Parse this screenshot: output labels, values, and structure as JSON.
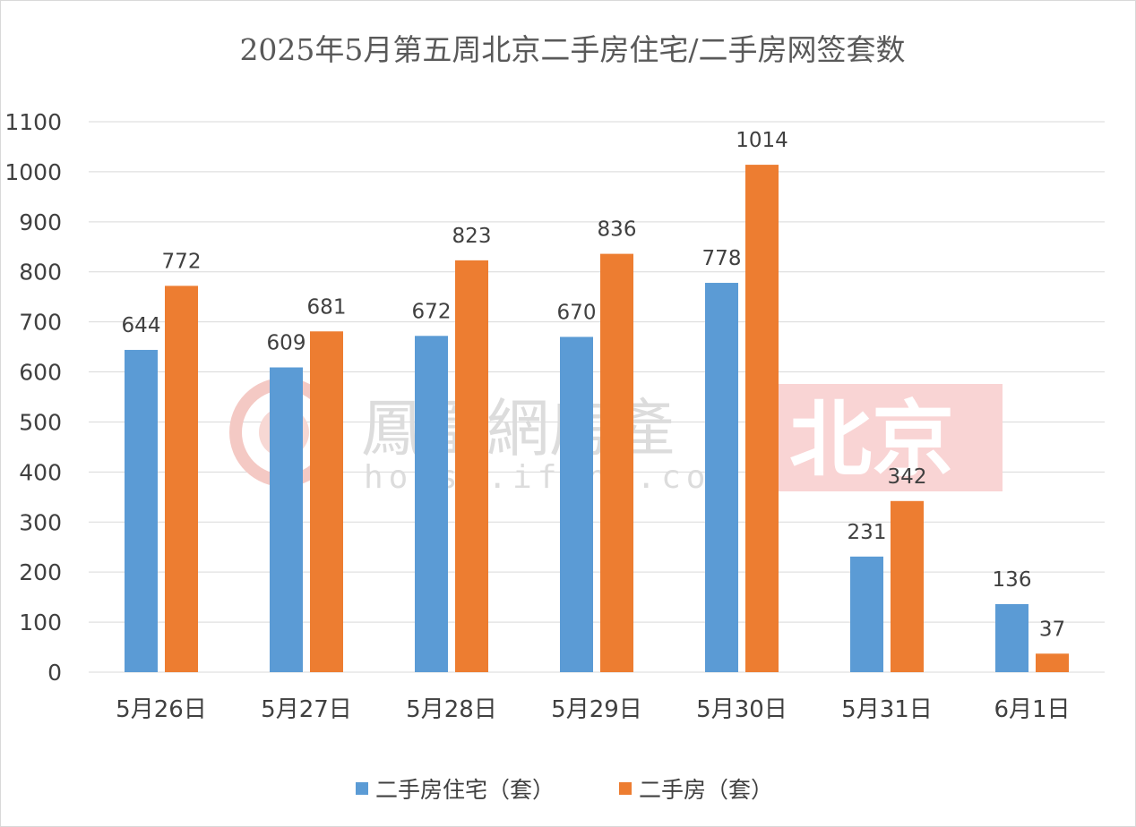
{
  "chart_data": {
    "type": "bar",
    "title": "2025年5月第五周北京二手房住宅/二手房网签套数",
    "categories": [
      "5月26日",
      "5月27日",
      "5月28日",
      "5月29日",
      "5月30日",
      "5月31日",
      "6月1日"
    ],
    "series": [
      {
        "name": "二手房住宅（套）",
        "color": "#5b9bd5",
        "values": [
          644,
          609,
          672,
          670,
          778,
          231,
          136
        ]
      },
      {
        "name": "二手房（套）",
        "color": "#ed7d31",
        "values": [
          772,
          681,
          823,
          836,
          1014,
          342,
          37
        ]
      }
    ],
    "ylim": [
      0,
      1100
    ],
    "yticks": [
      0,
      100,
      200,
      300,
      400,
      500,
      600,
      700,
      800,
      900,
      1000,
      1100
    ],
    "grid": true,
    "legend": "bottom",
    "xlabel": "",
    "ylabel": ""
  },
  "watermark": {
    "brand_cn": "鳳凰網房產",
    "brand_en": "house.ifeng.com",
    "city": "北京"
  }
}
